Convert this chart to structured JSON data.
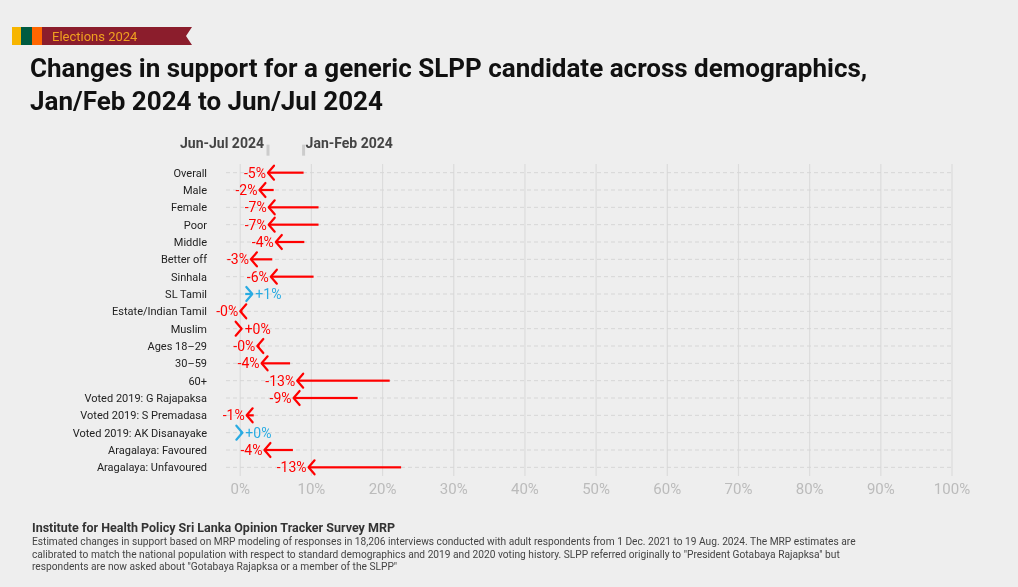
{
  "chart_data": {
    "type": "bar",
    "orientation": "horizontal",
    "title": "Changes in support for a generic SLPP candidate across demographics, Jan/Feb 2024 to Jun/Jul 2024",
    "categories": [
      "Overall",
      "Male",
      "Female",
      "Poor",
      "Middle",
      "Better off",
      "Sinhala",
      "SL Tamil",
      "Estate/Indian Tamil",
      "Muslim",
      "Ages 18–29",
      "30–59",
      "60+",
      "Voted 2019: G Rajapaksa",
      "Voted 2019: S Premadasa",
      "Voted 2019: AK Disanayake",
      "Aragalaya: Favoured",
      "Aragalaya: Unfavoured"
    ],
    "base": [
      8.9,
      4.7,
      11,
      11,
      9,
      4.5,
      10.3,
      0.7,
      0.3,
      0,
      2.7,
      7,
      21,
      16.5,
      1.9,
      0,
      7.4,
      22.6
    ],
    "values": [
      -5,
      -2,
      -7,
      -7,
      -4,
      -3,
      -6,
      1,
      -0.3,
      0.2,
      -0.3,
      -4,
      -13,
      -9,
      -1,
      0.3,
      -4,
      -13
    ],
    "value_labels": [
      "-5%",
      "-2%",
      "-7%",
      "-7%",
      "-4%",
      "-3%",
      "-6%",
      "+1%",
      "-0%",
      "+0%",
      "-0%",
      "-4%",
      "-13%",
      "-9%",
      "-1%",
      "+0%",
      "-4%",
      "-13%"
    ],
    "colors": [
      "#ff0000",
      "#ff0000",
      "#ff0000",
      "#ff0000",
      "#ff0000",
      "#ff0000",
      "#ff0000",
      "#29abe2",
      "#ff0000",
      "#ff0000",
      "#ff0000",
      "#ff0000",
      "#ff0000",
      "#ff0000",
      "#ff0000",
      "#29abe2",
      "#ff0000",
      "#ff0000"
    ],
    "xlim": [
      -2,
      100
    ],
    "xticks": [
      {
        "value": 0,
        "label": "0%"
      },
      {
        "value": 10,
        "label": "10%"
      },
      {
        "value": 20,
        "label": "20%"
      },
      {
        "value": 30,
        "label": "30%"
      },
      {
        "value": 40,
        "label": "40%"
      },
      {
        "value": 50,
        "label": "50%"
      },
      {
        "value": 60,
        "label": "60%"
      },
      {
        "value": 70,
        "label": "70%"
      },
      {
        "value": 80,
        "label": "80%"
      },
      {
        "value": 90,
        "label": "90%"
      },
      {
        "value": 100,
        "label": "100%"
      }
    ],
    "grid": true,
    "annotations": [
      "Elections 2024",
      "Jun-Jul 2024",
      "Jan-Feb 2024",
      "Institute for Health Policy Sri Lanka Opinion Tracker Survey MRP",
      "Estimated changes in support based on MRP modeling of responses in 18,206 interviews conducted with adult respondents from 1 Dec. 2021 to 19 Aug. 2024. The MRP estimates are calibrated to match the national population with respect to standard demographics and 2019 and 2020 voting history. SLPP referred originally to \"President Gotabaya Rajapksa\" but respondents are now asked about \"Gotabaya Rajapksa or a member of the SLPP\""
    ]
  }
}
